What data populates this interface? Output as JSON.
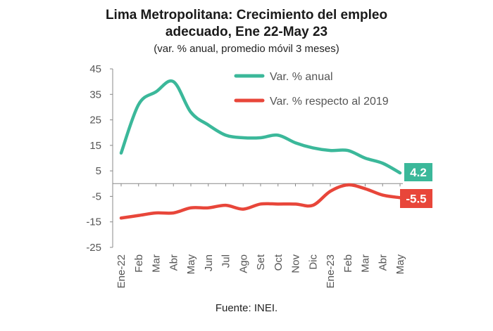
{
  "title_line1": "Lima Metropolitana: Crecimiento del empleo",
  "title_line2": "adecuado, Ene 22-May 23",
  "subtitle": "(var. % anual, promedio móvil 3 meses)",
  "source": "Fuente: INEI.",
  "colors": {
    "series1": "#3bb89a",
    "series2": "#e8463a",
    "axis": "#888888"
  },
  "chart_data": {
    "type": "line",
    "title": "Lima Metropolitana: Crecimiento del empleo adecuado, Ene 22-May 23",
    "subtitle": "(var. % anual, promedio móvil 3 meses)",
    "categories": [
      "Ene-22",
      "Feb",
      "Mar",
      "Abr",
      "May",
      "Jun",
      "Jul",
      "Ago",
      "Set",
      "Oct",
      "Nov",
      "Dic",
      "Ene-23",
      "Feb",
      "Mar",
      "Abr",
      "May"
    ],
    "series": [
      {
        "name": "Var. % anual",
        "values": [
          12,
          31,
          36,
          40,
          28,
          23,
          19,
          18,
          18,
          19,
          16,
          14,
          13,
          13,
          10,
          8,
          4.2
        ],
        "end_label": "4.2"
      },
      {
        "name": "Var. % respecto al 2019",
        "values": [
          -13.5,
          -12.5,
          -11.5,
          -11.5,
          -9.5,
          -9.5,
          -8.5,
          -10,
          -8,
          -8,
          -8,
          -8.5,
          -3,
          -0.5,
          -2,
          -4.5,
          -5.5
        ],
        "end_label": "-5.5"
      }
    ],
    "ylim": [
      -25,
      45
    ],
    "yticks": [
      45,
      35,
      25,
      15,
      5,
      -5,
      -15,
      -25
    ],
    "legend": "top-right",
    "grid": false
  }
}
